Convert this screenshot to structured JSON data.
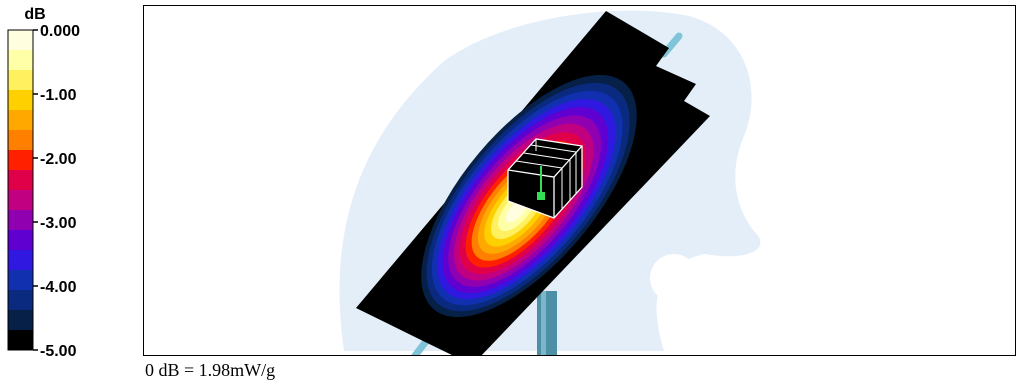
{
  "chart_data": {
    "type": "heatmap",
    "title": "",
    "colorbar": {
      "unit_label": "dB",
      "range": [
        -5.0,
        0.0
      ],
      "tick_labels": [
        "0.000",
        "-1.00",
        "-2.00",
        "-3.00",
        "-4.00",
        "-5.00"
      ],
      "tick_values": [
        0.0,
        -1.0,
        -2.0,
        -3.0,
        -4.0,
        -5.0
      ],
      "levels": [
        {
          "value": 0.0,
          "color": "#ffffe0"
        },
        {
          "value": -0.33,
          "color": "#ffffa8"
        },
        {
          "value": -0.67,
          "color": "#fff060"
        },
        {
          "value": -1.0,
          "color": "#ffd000"
        },
        {
          "value": -1.33,
          "color": "#ffa800"
        },
        {
          "value": -1.67,
          "color": "#ff8000"
        },
        {
          "value": -2.0,
          "color": "#ff2000"
        },
        {
          "value": -2.33,
          "color": "#e0004a"
        },
        {
          "value": -2.67,
          "color": "#c00080"
        },
        {
          "value": -3.0,
          "color": "#9000b0"
        },
        {
          "value": -3.33,
          "color": "#6000d0"
        },
        {
          "value": -3.67,
          "color": "#3018e0"
        },
        {
          "value": -4.0,
          "color": "#1030b0"
        },
        {
          "value": -4.33,
          "color": "#0a2a80"
        },
        {
          "value": -4.67,
          "color": "#062048"
        },
        {
          "value": -5.0,
          "color": "#000000"
        }
      ]
    },
    "reference": "0 dB = 1.98mW/g"
  },
  "colors": {
    "phantom_background": "#e4eef9",
    "scan_plate": "#000000",
    "stand": "#4d8fa6",
    "probe_marker": "#33dd55"
  }
}
